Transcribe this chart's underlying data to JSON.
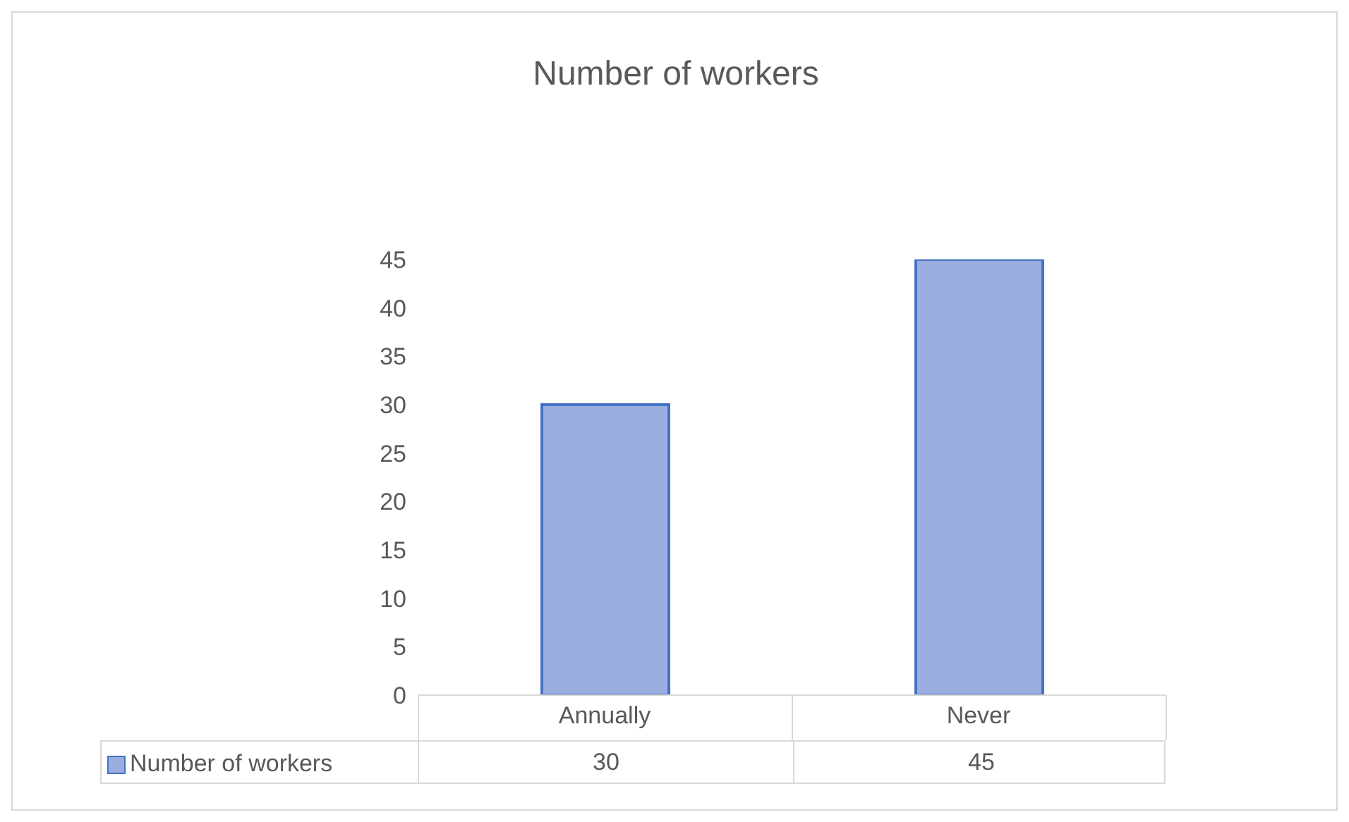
{
  "chart_data": {
    "type": "bar",
    "title": "Number of workers",
    "categories": [
      "Annually",
      "Never"
    ],
    "series": [
      {
        "name": "Number of workers",
        "color": "#9aaee0",
        "values": [
          30,
          45
        ]
      }
    ],
    "ylim": [
      0,
      45
    ],
    "yticks": [
      0,
      5,
      10,
      15,
      20,
      25,
      30,
      35,
      40,
      45
    ],
    "grid": false,
    "legend": "bottom",
    "data_labels": true
  }
}
